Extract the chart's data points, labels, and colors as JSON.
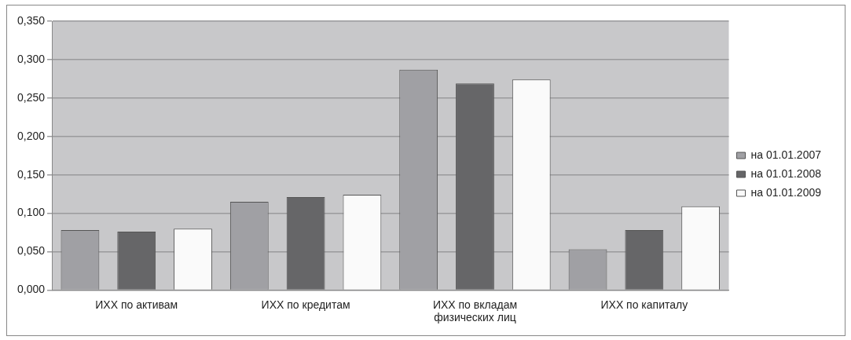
{
  "chart_data": {
    "type": "bar",
    "categories": [
      "ИХХ по активам",
      "ИХХ по кредитам",
      "ИХХ по вкладам физических лиц",
      "ИХХ по капиталу"
    ],
    "series": [
      {
        "name": "на 01.01.2007",
        "color": "#a0a0a4",
        "values": [
          0.078,
          0.115,
          0.287,
          0.053
        ]
      },
      {
        "name": "на 01.01.2008",
        "color": "#666668",
        "values": [
          0.076,
          0.121,
          0.269,
          0.078
        ]
      },
      {
        "name": "на 01.01.2009",
        "color": "#fafafa",
        "values": [
          0.08,
          0.124,
          0.274,
          0.109
        ]
      }
    ],
    "ylim": [
      0,
      0.35
    ],
    "yticks": [
      {
        "value": 0,
        "label": "0,000"
      },
      {
        "value": 0.05,
        "label": "0,050"
      },
      {
        "value": 0.1,
        "label": "0,100"
      },
      {
        "value": 0.15,
        "label": "0,150"
      },
      {
        "value": 0.2,
        "label": "0,200"
      },
      {
        "value": 0.25,
        "label": "0,250"
      },
      {
        "value": 0.3,
        "label": "0,300"
      },
      {
        "value": 0.35,
        "label": "0,350"
      }
    ],
    "grid": "y",
    "legend": "right"
  }
}
